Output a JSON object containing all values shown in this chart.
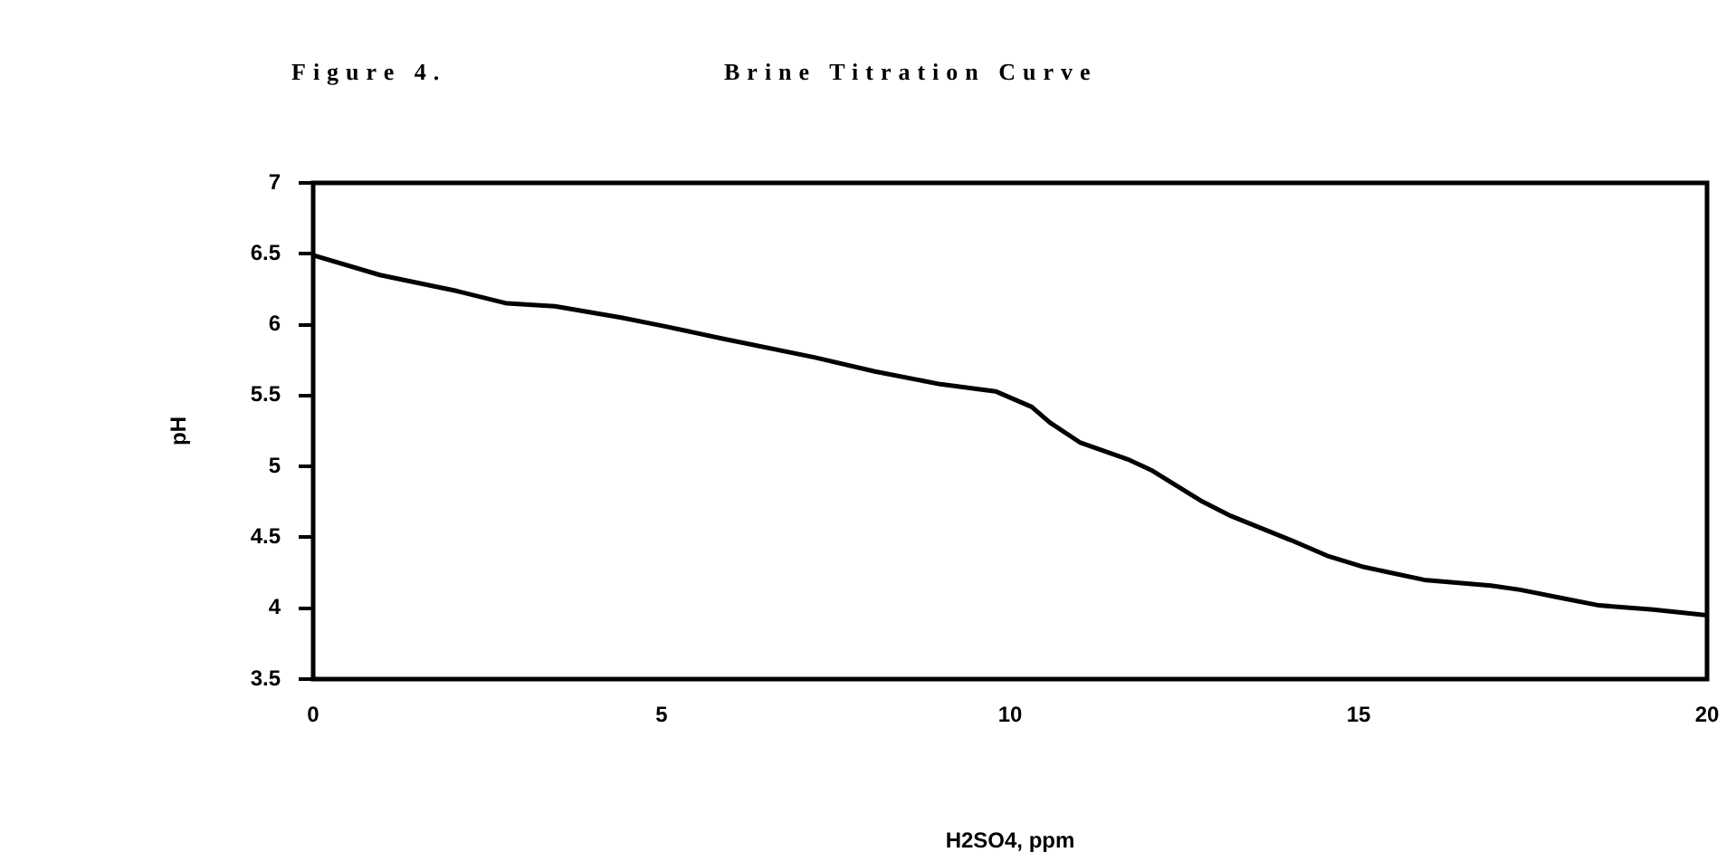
{
  "chart_data": {
    "type": "line",
    "title": "Figure 4.",
    "subtitle": "Brine Titration Curve",
    "xlabel": "H2SO4, ppm",
    "ylabel": "pH",
    "x": [
      0,
      0.96,
      1.74,
      2.04,
      2.78,
      3.47,
      4.42,
      5.03,
      5.89,
      7.19,
      8.06,
      9.0,
      9.79,
      10.31,
      10.57,
      11.0,
      11.69,
      12.04,
      12.73,
      13.17,
      14.03,
      14.55,
      15.08,
      15.94,
      16.9,
      17.32,
      17.93,
      18.45,
      19.23,
      20
    ],
    "series": [
      {
        "color": "#000000",
        "values": [
          6.49,
          6.35,
          6.27,
          6.24,
          6.15,
          6.13,
          6.05,
          5.99,
          5.9,
          5.77,
          5.67,
          5.58,
          5.53,
          5.42,
          5.31,
          5.17,
          5.05,
          4.97,
          4.76,
          4.65,
          4.48,
          4.37,
          4.29,
          4.2,
          4.16,
          4.13,
          4.07,
          4.02,
          3.99,
          3.95
        ]
      }
    ],
    "xlim": [
      0,
      20
    ],
    "xticks": [
      0,
      5,
      10,
      15,
      20
    ],
    "ylim": [
      3.5,
      7
    ],
    "yticks": [
      3.5,
      4,
      4.5,
      5,
      5.5,
      6,
      6.5,
      7
    ],
    "grid": false,
    "legend": false,
    "marker": "none",
    "line_style": "solid"
  }
}
